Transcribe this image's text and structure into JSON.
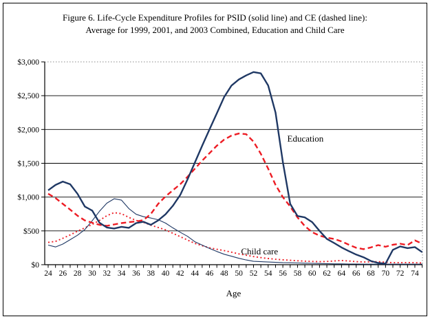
{
  "figure": {
    "title_line1": "Figure 6. Life-Cycle Expenditure Profiles for PSID (solid line) and CE (dashed line):",
    "title_line2": "Average for 1999, 2001, and 2003 Combined, Education and Child Care"
  },
  "chart_data": {
    "type": "line",
    "xlabel": "Age",
    "ylabel": "",
    "x": [
      24,
      25,
      26,
      27,
      28,
      29,
      30,
      31,
      32,
      33,
      34,
      35,
      36,
      37,
      38,
      39,
      40,
      41,
      42,
      43,
      44,
      45,
      46,
      47,
      48,
      49,
      50,
      51,
      52,
      53,
      54,
      55,
      56,
      57,
      58,
      59,
      60,
      61,
      62,
      63,
      64,
      65,
      66,
      67,
      68,
      69,
      70,
      71,
      72,
      73,
      74,
      75
    ],
    "x_tick_labels": [
      "24",
      "26",
      "28",
      "30",
      "32",
      "34",
      "36",
      "38",
      "40",
      "42",
      "44",
      "46",
      "48",
      "50",
      "52",
      "54",
      "56",
      "58",
      "60",
      "62",
      "64",
      "66",
      "68",
      "70",
      "72",
      "74"
    ],
    "ylim": [
      0,
      3000
    ],
    "y_ticks": [
      0,
      500,
      1000,
      1500,
      2000,
      2500,
      3000
    ],
    "y_tick_labels": [
      "$0",
      "$500",
      "$1,000",
      "$1,500",
      "$2,000",
      "$2,500",
      "$3,000"
    ],
    "grid": "horizontal black lines every $500; dotted gray line at $3,000 top and right edge",
    "legend_position": "none (inline annotations)",
    "colors": {
      "navy": "#1F3864",
      "red": "#ED1C24"
    },
    "series": [
      {
        "name": "Education (PSID, solid line)",
        "style": "solid",
        "color": "#1F3864",
        "values": [
          1100,
          1180,
          1230,
          1190,
          1050,
          860,
          800,
          620,
          550,
          535,
          560,
          545,
          615,
          635,
          590,
          655,
          745,
          870,
          1030,
          1260,
          1510,
          1760,
          2000,
          2240,
          2480,
          2650,
          2740,
          2800,
          2850,
          2830,
          2650,
          2250,
          1520,
          900,
          720,
          700,
          630,
          500,
          380,
          320,
          255,
          200,
          150,
          110,
          55,
          25,
          15,
          220,
          270,
          245,
          260,
          185
        ]
      },
      {
        "name": "Education (CE, dashed line)",
        "style": "dashed",
        "color": "#ED1C24",
        "values": [
          1050,
          985,
          900,
          815,
          725,
          655,
          620,
          590,
          575,
          595,
          615,
          630,
          640,
          660,
          750,
          900,
          1010,
          1100,
          1190,
          1300,
          1420,
          1540,
          1650,
          1760,
          1850,
          1910,
          1940,
          1930,
          1820,
          1640,
          1420,
          1180,
          1000,
          860,
          700,
          570,
          480,
          430,
          400,
          380,
          345,
          295,
          250,
          230,
          255,
          290,
          265,
          295,
          310,
          290,
          360,
          310
        ]
      },
      {
        "name": "Child care (PSID, thin solid line)",
        "style": "solid-thin",
        "color": "#1F3864",
        "values": [
          290,
          262,
          305,
          370,
          435,
          520,
          650,
          790,
          910,
          975,
          955,
          830,
          745,
          710,
          690,
          665,
          615,
          545,
          480,
          420,
          340,
          290,
          240,
          195,
          155,
          125,
          95,
          70,
          50,
          45,
          40,
          35,
          30,
          28,
          25,
          22,
          20,
          18,
          15,
          12,
          12,
          10,
          10,
          8,
          8,
          8,
          8,
          8,
          8,
          8,
          8,
          8
        ]
      },
      {
        "name": "Child care (CE, dotted line)",
        "style": "dotted",
        "color": "#ED1C24",
        "values": [
          330,
          345,
          390,
          440,
          495,
          545,
          595,
          655,
          725,
          770,
          755,
          700,
          655,
          625,
          585,
          550,
          515,
          465,
          415,
          365,
          315,
          280,
          250,
          228,
          208,
          185,
          160,
          140,
          120,
          105,
          92,
          80,
          72,
          65,
          58,
          52,
          48,
          45,
          48,
          55,
          62,
          55,
          45,
          40,
          42,
          46,
          36,
          30,
          30,
          32,
          30,
          25
        ]
      }
    ],
    "annotations": [
      {
        "text": "Education",
        "age": 56.6,
        "value": 1860
      },
      {
        "text": "Child care",
        "age": 50.3,
        "value": 195
      }
    ]
  }
}
